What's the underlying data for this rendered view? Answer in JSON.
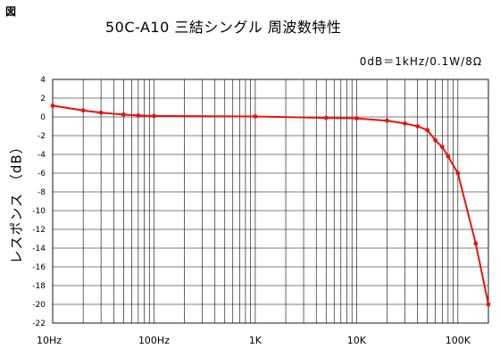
{
  "figure_label": "図",
  "chart_data": {
    "type": "line",
    "title": "50C-A10 三結シングル 周波数特性",
    "subtitle": "0dB＝1kHz/0.1W/8Ω",
    "xlabel": "",
    "ylabel": "レスポンス （dB）",
    "x_scale": "log",
    "xlim": [
      10,
      200000
    ],
    "ylim": [
      -22,
      4
    ],
    "yticks": [
      4,
      2,
      0,
      -2,
      -4,
      -6,
      -8,
      -10,
      -12,
      -14,
      -16,
      -18,
      -20,
      -22
    ],
    "xtick_labels": [
      {
        "value": 10,
        "label": "10Hz"
      },
      {
        "value": 100,
        "label": "100Hz"
      },
      {
        "value": 1000,
        "label": "1K"
      },
      {
        "value": 10000,
        "label": "10K"
      },
      {
        "value": 100000,
        "label": "100K"
      }
    ],
    "grid": true,
    "series": [
      {
        "color": "#e8140c",
        "x": [
          10,
          20,
          30,
          50,
          70,
          100,
          1000,
          5000,
          10000,
          20000,
          30000,
          40000,
          50000,
          60000,
          70000,
          80000,
          100000,
          150000,
          200000
        ],
        "y": [
          1.2,
          0.7,
          0.45,
          0.25,
          0.15,
          0.1,
          0.05,
          -0.1,
          -0.15,
          -0.4,
          -0.7,
          -1.0,
          -1.4,
          -2.5,
          -3.2,
          -4.2,
          -6.0,
          -13.5,
          -20.0
        ]
      }
    ]
  }
}
